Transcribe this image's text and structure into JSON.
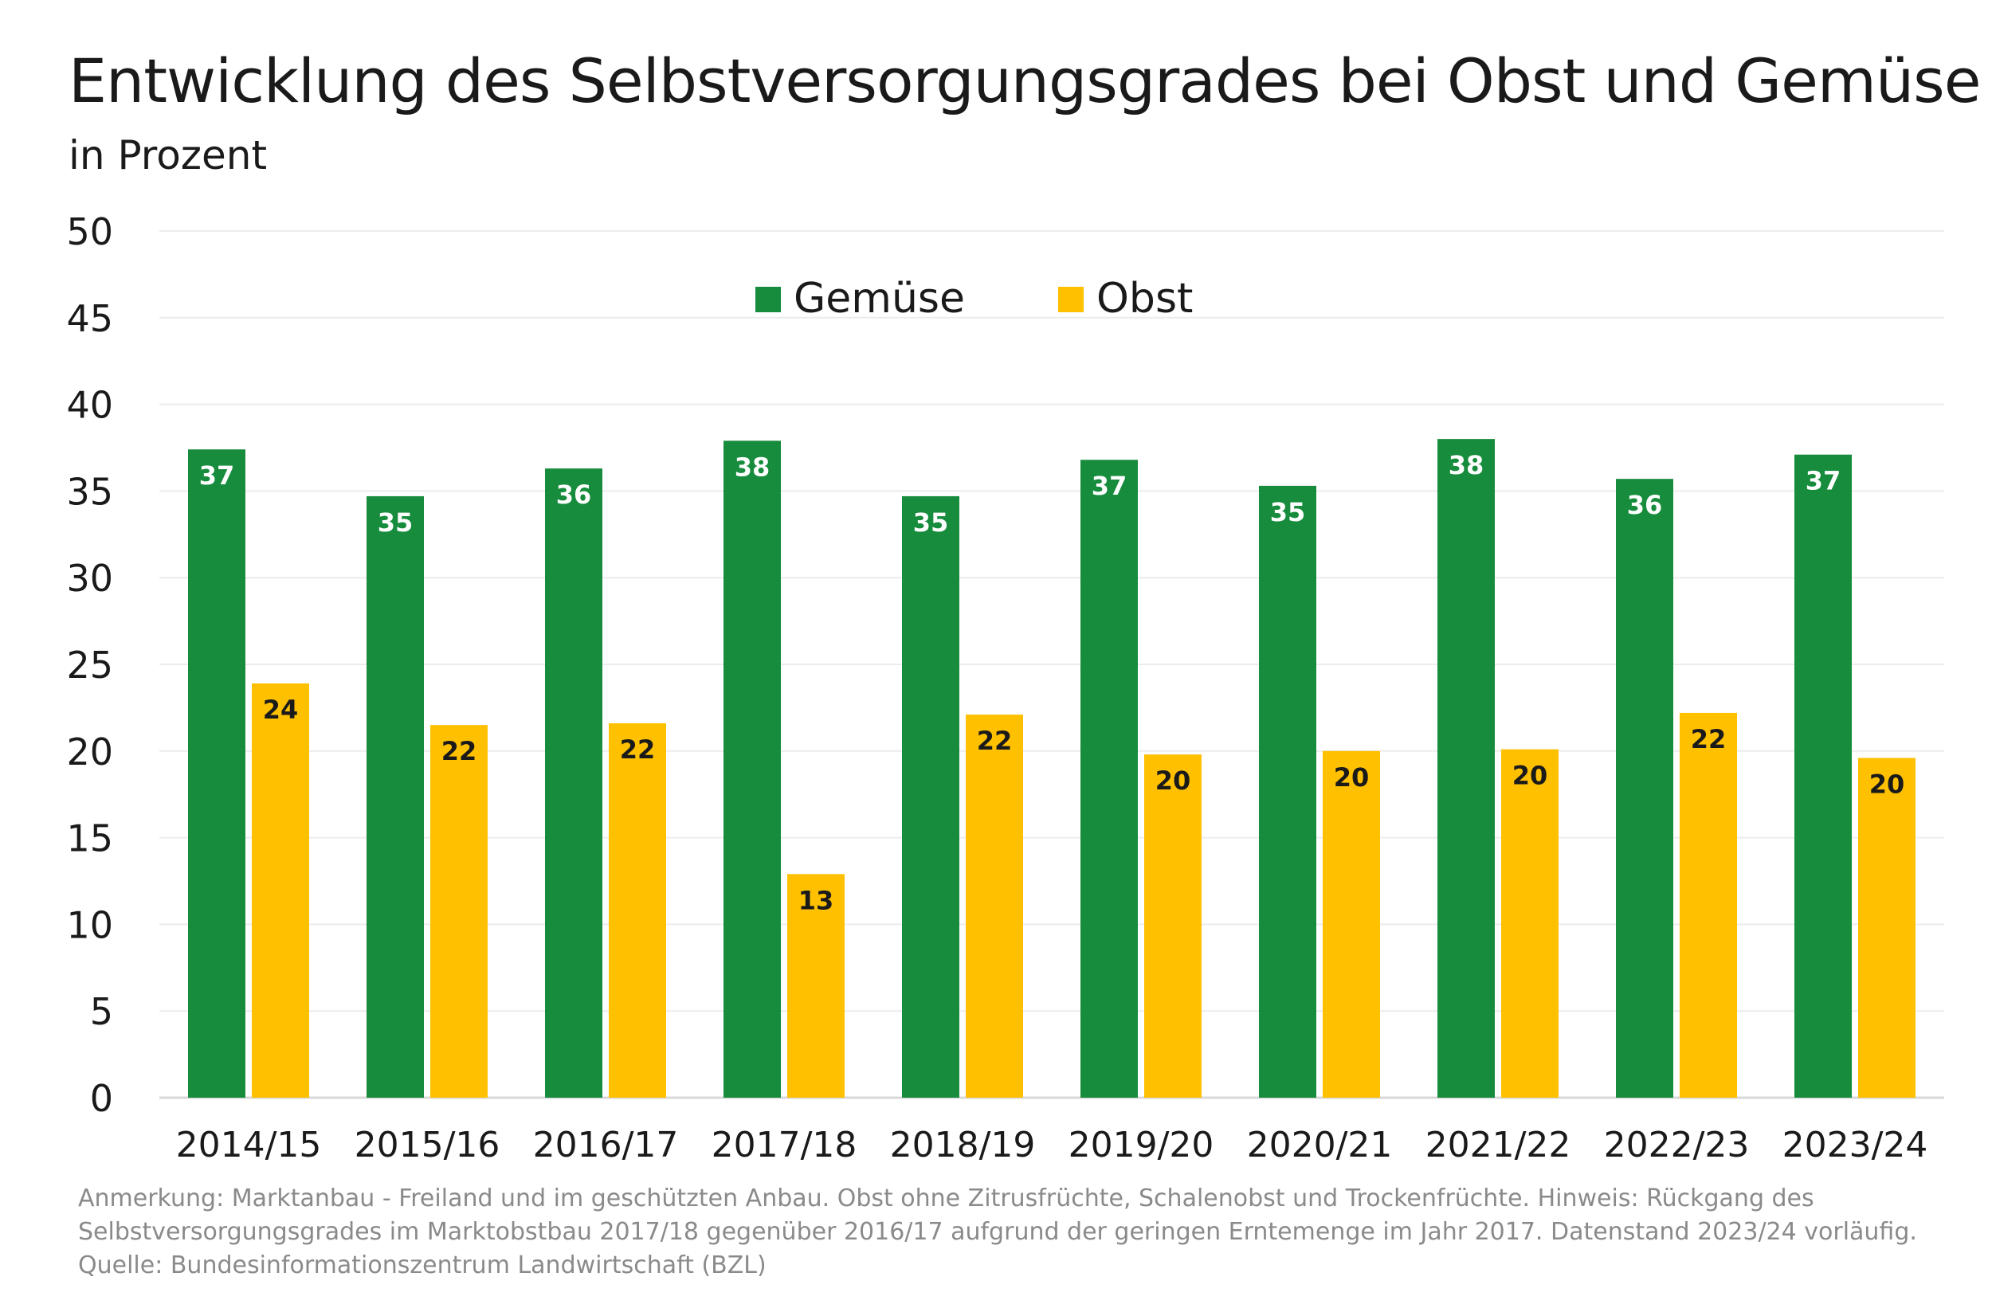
{
  "chart_data": {
    "type": "bar",
    "title": "Entwicklung des Selbstversorgungsgrades bei Obst und Gemüse",
    "subtitle": "in Prozent",
    "categories": [
      "2014/15",
      "2015/16",
      "2016/17",
      "2017/18",
      "2018/19",
      "2019/20",
      "2020/21",
      "2021/22",
      "2022/23",
      "2023/24"
    ],
    "series": [
      {
        "name": "Gemüse",
        "color": "#168C3C",
        "label_color": "#ffffff",
        "values": [
          37.4,
          34.7,
          36.3,
          37.9,
          34.7,
          36.8,
          35.3,
          38.0,
          35.7,
          37.1
        ],
        "labels": [
          "37",
          "35",
          "36",
          "38",
          "35",
          "37",
          "35",
          "38",
          "36",
          "37"
        ]
      },
      {
        "name": "Obst",
        "color": "#FFC000",
        "label_color": "#1a1a1a",
        "values": [
          23.9,
          21.5,
          21.6,
          12.9,
          22.1,
          19.8,
          20.0,
          20.1,
          22.2,
          19.6
        ],
        "labels": [
          "24",
          "22",
          "22",
          "13",
          "22",
          "20",
          "20",
          "20",
          "22",
          "20"
        ]
      }
    ],
    "ylim": [
      0,
      50
    ],
    "yticks": [
      0,
      5,
      10,
      15,
      20,
      25,
      30,
      35,
      40,
      45,
      50
    ],
    "grid": true,
    "legend_position": "top-center"
  },
  "notes": {
    "line1": "Anmerkung: Marktanbau - Freiland und im geschützten Anbau. Obst ohne Zitrusfrüchte, Schalenobst und Trockenfrüchte. Hinweis: Rückgang des",
    "line2": "Selbstversorgungsgrades im Marktobstbau 2017/18 gegenüber 2016/17 aufgrund der geringen Erntemenge im Jahr 2017. Datenstand 2023/24 vorläufig.",
    "source": "Quelle: Bundesinformationszentrum Landwirtschaft (BZL)"
  }
}
